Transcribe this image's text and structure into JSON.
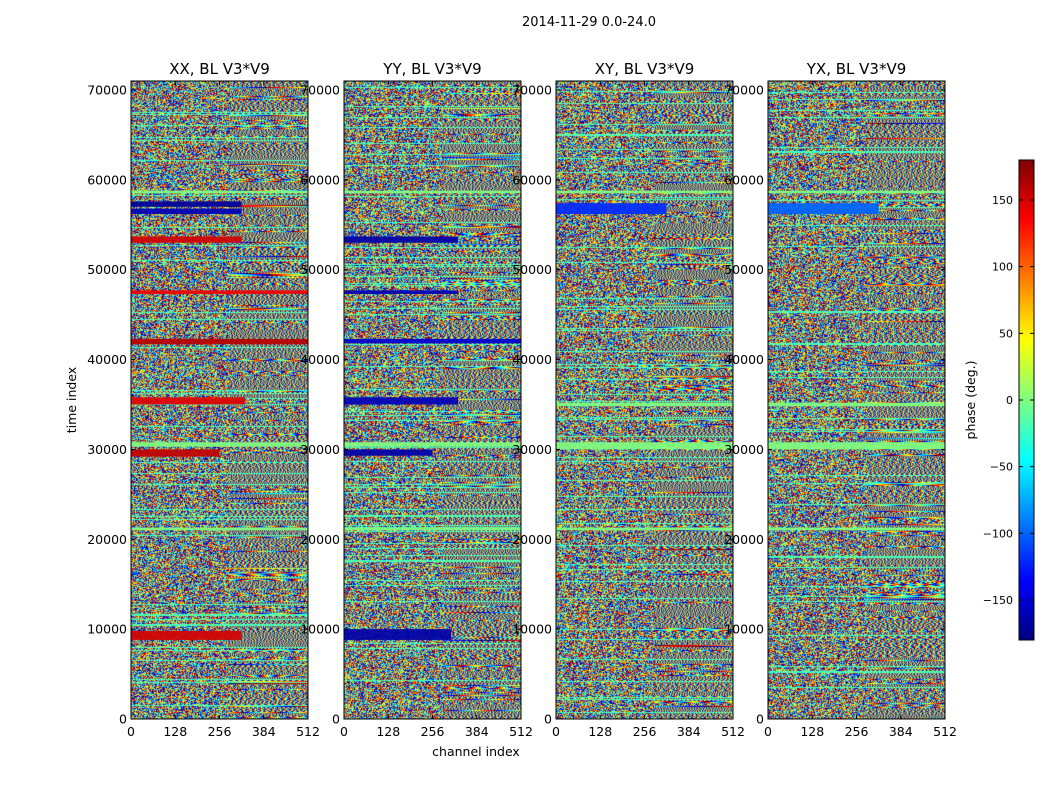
{
  "figure_title": "2014-11-29 0.0-24.0",
  "chart_data": {
    "type": "heatmap",
    "title": "2014-11-29 0.0-24.0",
    "xlabel": "channel index",
    "ylabel": "time index",
    "xlim": [
      0,
      512
    ],
    "ylim": [
      0,
      71000
    ],
    "xticks": [
      0,
      128,
      256,
      384,
      512
    ],
    "yticks": [
      0,
      10000,
      20000,
      30000,
      40000,
      50000,
      60000,
      70000
    ],
    "colorbar": {
      "label": "phase (deg.)",
      "range": [
        -180,
        180
      ],
      "ticks": [
        150,
        100,
        50,
        0,
        -50,
        -100,
        -150
      ],
      "tick_labels": [
        "150",
        "100",
        "50",
        "0",
        "−50",
        "−100",
        "−150"
      ],
      "colormap": "jet"
    },
    "panels": [
      {
        "title": "XX, BL V3*V9",
        "bands": [
          {
            "y0": 8800,
            "y1": 9800,
            "x0": 0,
            "x1": 320,
            "phase": 150
          },
          {
            "y0": 29200,
            "y1": 30000,
            "x0": 0,
            "x1": 256,
            "phase": 155
          },
          {
            "y0": 35000,
            "y1": 35800,
            "x0": 0,
            "x1": 330,
            "phase": 145
          },
          {
            "y0": 41700,
            "y1": 42300,
            "x0": 0,
            "x1": 512,
            "phase": 160
          },
          {
            "y0": 47300,
            "y1": 47700,
            "x0": 0,
            "x1": 512,
            "phase": 140
          },
          {
            "y0": 53000,
            "y1": 53700,
            "x0": 0,
            "x1": 320,
            "phase": 150
          },
          {
            "y0": 56200,
            "y1": 56800,
            "x0": 0,
            "x1": 320,
            "phase": -160
          },
          {
            "y0": 57000,
            "y1": 57600,
            "x0": 0,
            "x1": 320,
            "phase": -170
          },
          {
            "y0": 30300,
            "y1": 30800,
            "x0": 0,
            "x1": 512,
            "phase": 0
          },
          {
            "y0": 21000,
            "y1": 21300,
            "x0": 0,
            "x1": 512,
            "phase": 0
          },
          {
            "y0": 58500,
            "y1": 58800,
            "x0": 0,
            "x1": 512,
            "phase": 0
          }
        ]
      },
      {
        "title": "YY, BL V3*V9",
        "bands": [
          {
            "y0": 8800,
            "y1": 10000,
            "x0": 0,
            "x1": 310,
            "phase": -165
          },
          {
            "y0": 29300,
            "y1": 30000,
            "x0": 0,
            "x1": 256,
            "phase": -165
          },
          {
            "y0": 35000,
            "y1": 35800,
            "x0": 0,
            "x1": 330,
            "phase": -160
          },
          {
            "y0": 41800,
            "y1": 42300,
            "x0": 0,
            "x1": 512,
            "phase": -150
          },
          {
            "y0": 47300,
            "y1": 47700,
            "x0": 0,
            "x1": 330,
            "phase": -160
          },
          {
            "y0": 53000,
            "y1": 53700,
            "x0": 0,
            "x1": 330,
            "phase": -165
          },
          {
            "y0": 30300,
            "y1": 30800,
            "x0": 0,
            "x1": 512,
            "phase": 0
          },
          {
            "y0": 21000,
            "y1": 21300,
            "x0": 0,
            "x1": 512,
            "phase": 0
          },
          {
            "y0": 58500,
            "y1": 58800,
            "x0": 0,
            "x1": 512,
            "phase": 0
          }
        ]
      },
      {
        "title": "XY, BL V3*V9",
        "bands": [
          {
            "y0": 30000,
            "y1": 30800,
            "x0": 0,
            "x1": 512,
            "phase": 0
          },
          {
            "y0": 34800,
            "y1": 35200,
            "x0": 0,
            "x1": 512,
            "phase": 0
          },
          {
            "y0": 21000,
            "y1": 21300,
            "x0": 0,
            "x1": 512,
            "phase": 0
          },
          {
            "y0": 56200,
            "y1": 57400,
            "x0": 0,
            "x1": 320,
            "phase": -120
          },
          {
            "y0": 58500,
            "y1": 58800,
            "x0": 0,
            "x1": 512,
            "phase": 0
          }
        ]
      },
      {
        "title": "YX, BL V3*V9",
        "bands": [
          {
            "y0": 30000,
            "y1": 30800,
            "x0": 0,
            "x1": 512,
            "phase": 0
          },
          {
            "y0": 34800,
            "y1": 35200,
            "x0": 0,
            "x1": 512,
            "phase": 0
          },
          {
            "y0": 21000,
            "y1": 21300,
            "x0": 0,
            "x1": 512,
            "phase": 0
          },
          {
            "y0": 56200,
            "y1": 57400,
            "x0": 0,
            "x1": 320,
            "phase": -100
          },
          {
            "y0": 58500,
            "y1": 58800,
            "x0": 0,
            "x1": 512,
            "phase": 0
          }
        ]
      }
    ]
  }
}
